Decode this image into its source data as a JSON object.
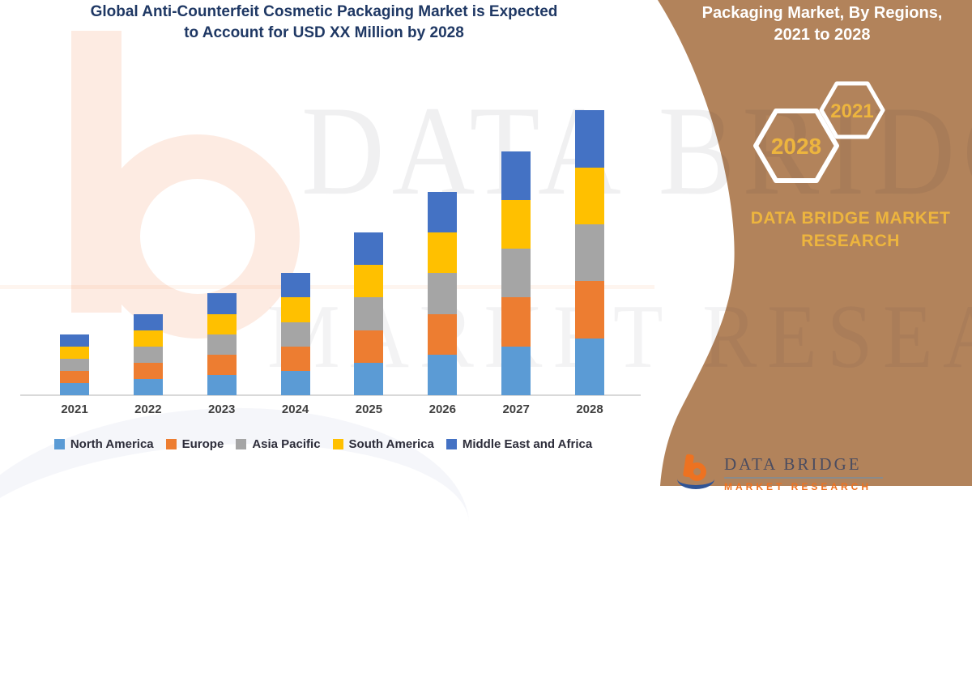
{
  "chart": {
    "title_line1": "Global Anti-Counterfeit Cosmetic Packaging Market is Expected",
    "title_line2": "to Account for USD XX Million by 2028",
    "title_color": "#1F3864"
  },
  "chart_data": {
    "type": "bar",
    "stacked": true,
    "title": "Global Anti-Counterfeit Cosmetic Packaging Market is Expected to Account for USD XX Million by 2028",
    "xlabel": "",
    "ylabel": "",
    "axis_labels_shown": false,
    "grid": false,
    "legend_position": "bottom",
    "values_note": "Actual figures masked as 'USD XX Million'; values are relative units estimated from bar pixel heights (regions appear equal within each year)",
    "categories": [
      "2021",
      "2022",
      "2023",
      "2024",
      "2025",
      "2026",
      "2027",
      "2028"
    ],
    "totals": [
      75,
      100,
      125,
      150,
      200,
      250,
      300,
      350
    ],
    "series": [
      {
        "name": "North America",
        "color": "#5B9BD5",
        "values": [
          15,
          20,
          25,
          30,
          40,
          50,
          60,
          70
        ]
      },
      {
        "name": "Europe",
        "color": "#ED7D31",
        "values": [
          15,
          20,
          25,
          30,
          40,
          50,
          60,
          70
        ]
      },
      {
        "name": "Asia Pacific",
        "color": "#A5A5A5",
        "values": [
          15,
          20,
          25,
          30,
          40,
          50,
          60,
          70
        ]
      },
      {
        "name": "South America",
        "color": "#FFC000",
        "values": [
          15,
          20,
          25,
          30,
          40,
          50,
          60,
          70
        ]
      },
      {
        "name": "Middle East and Africa",
        "color": "#4472C4",
        "values": [
          15,
          20,
          25,
          30,
          40,
          50,
          60,
          70
        ]
      }
    ]
  },
  "side_panel": {
    "bg_color": "#B2835B",
    "accent_color": "#EDB53E",
    "title_line1": "Packaging Market, By Regions,",
    "title_line2": "2021 to 2028",
    "hexagons": [
      {
        "label": "2021"
      },
      {
        "label": "2028"
      }
    ],
    "brand_line1": "DATA BRIDGE MARKET",
    "brand_line2": "RESEARCH"
  },
  "watermark": {
    "line1": "DATA BRIDGE",
    "line2": "MARKET RESEARCH"
  },
  "footer": {
    "brand": "DATA BRIDGE",
    "sub": "MARKET RESEARCH"
  }
}
